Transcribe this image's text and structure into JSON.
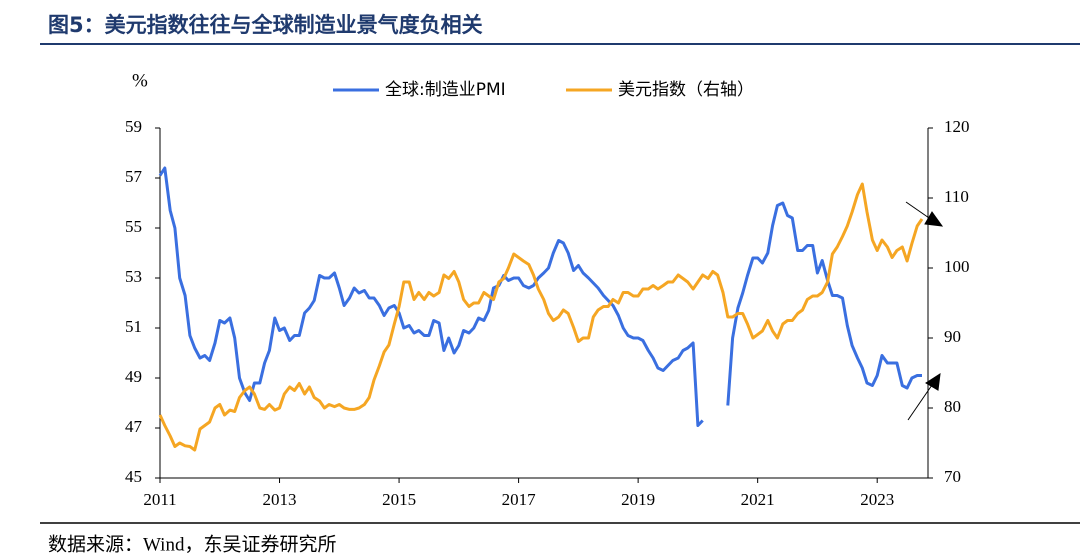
{
  "chart_data": {
    "type": "line",
    "title": "图5：美元指数往往与全球制造业景气度负相关",
    "ylabel": "%",
    "source": "数据来源：Wind，东吴证券研究所",
    "x": [
      2011.0,
      2011.08,
      2011.17,
      2011.25,
      2011.33,
      2011.42,
      2011.5,
      2011.58,
      2011.67,
      2011.75,
      2011.83,
      2011.92,
      2012.0,
      2012.08,
      2012.17,
      2012.25,
      2012.33,
      2012.42,
      2012.5,
      2012.58,
      2012.67,
      2012.75,
      2012.83,
      2012.92,
      2013.0,
      2013.08,
      2013.17,
      2013.25,
      2013.33,
      2013.42,
      2013.5,
      2013.58,
      2013.67,
      2013.75,
      2013.83,
      2013.92,
      2014.0,
      2014.08,
      2014.17,
      2014.25,
      2014.33,
      2014.42,
      2014.5,
      2014.58,
      2014.67,
      2014.75,
      2014.83,
      2014.92,
      2015.0,
      2015.08,
      2015.17,
      2015.25,
      2015.33,
      2015.42,
      2015.5,
      2015.58,
      2015.67,
      2015.75,
      2015.83,
      2015.92,
      2016.0,
      2016.08,
      2016.17,
      2016.25,
      2016.33,
      2016.42,
      2016.5,
      2016.58,
      2016.67,
      2016.75,
      2016.83,
      2016.92,
      2017.0,
      2017.08,
      2017.17,
      2017.25,
      2017.33,
      2017.42,
      2017.5,
      2017.58,
      2017.67,
      2017.75,
      2017.83,
      2017.92,
      2018.0,
      2018.08,
      2018.17,
      2018.25,
      2018.33,
      2018.42,
      2018.5,
      2018.58,
      2018.67,
      2018.75,
      2018.83,
      2018.92,
      2019.0,
      2019.08,
      2019.17,
      2019.25,
      2019.33,
      2019.42,
      2019.5,
      2019.58,
      2019.67,
      2019.75,
      2019.83,
      2019.92,
      2020.0,
      2020.08,
      2020.17,
      2020.25,
      2020.33,
      2020.42,
      2020.5,
      2020.58,
      2020.67,
      2020.75,
      2020.83,
      2020.92,
      2021.0,
      2021.08,
      2021.17,
      2021.25,
      2021.33,
      2021.42,
      2021.5,
      2021.58,
      2021.67,
      2021.75,
      2021.83,
      2021.92,
      2022.0,
      2022.08,
      2022.17,
      2022.25,
      2022.33,
      2022.42,
      2022.5,
      2022.58,
      2022.67,
      2022.75,
      2022.83,
      2022.92,
      2023.0,
      2023.08,
      2023.17,
      2023.25,
      2023.33,
      2023.42,
      2023.5,
      2023.58,
      2023.67,
      2023.75
    ],
    "series": [
      {
        "name": "全球:制造业PMI",
        "color": "#3a6fe0",
        "axis": "y",
        "values": [
          57.1,
          57.4,
          55.7,
          55.0,
          53.0,
          52.3,
          50.7,
          50.2,
          49.8,
          49.9,
          49.7,
          50.4,
          51.3,
          51.2,
          51.4,
          50.6,
          49.0,
          48.4,
          48.1,
          48.8,
          48.8,
          49.6,
          50.1,
          51.4,
          50.9,
          51.0,
          50.5,
          50.7,
          50.7,
          51.6,
          51.8,
          52.1,
          53.1,
          53.0,
          53.0,
          53.2,
          52.6,
          51.9,
          52.2,
          52.6,
          52.4,
          52.5,
          52.2,
          52.2,
          51.9,
          51.5,
          51.8,
          51.9,
          51.6,
          51.0,
          51.1,
          50.8,
          50.9,
          50.7,
          50.7,
          51.3,
          51.2,
          50.1,
          50.6,
          50.0,
          50.3,
          50.9,
          50.8,
          51.0,
          51.4,
          51.3,
          51.7,
          52.6,
          52.7,
          53.1,
          52.9,
          53.0,
          53.0,
          52.7,
          52.6,
          52.7,
          53.0,
          53.2,
          53.4,
          54.0,
          54.5,
          54.4,
          54.0,
          53.3,
          53.5,
          53.2,
          53.0,
          52.8,
          52.6,
          52.3,
          52.1,
          51.9,
          51.5,
          51.0,
          50.7,
          50.6,
          50.6,
          50.5,
          50.1,
          49.8,
          49.4,
          49.3,
          49.5,
          49.7,
          49.8,
          50.1,
          50.2,
          50.4,
          47.1,
          47.3,
          null,
          null,
          null,
          null,
          47.9,
          50.6,
          51.8,
          52.4,
          53.1,
          53.8,
          53.8,
          53.6,
          54.0,
          55.1,
          55.9,
          56.0,
          55.5,
          55.4,
          54.1,
          54.1,
          54.3,
          54.3,
          53.2,
          53.7,
          52.9,
          52.3,
          52.3,
          52.2,
          51.1,
          50.3,
          49.8,
          49.4,
          48.8,
          48.7,
          49.1,
          49.9,
          49.6,
          49.6,
          49.6,
          48.7,
          48.6,
          49.0,
          49.1,
          49.1
        ]
      },
      {
        "name": "美元指数（右轴）",
        "color": "#f5a623",
        "axis": "y2",
        "values": [
          79,
          77.5,
          76,
          74.5,
          75,
          74.6,
          74.5,
          74,
          77,
          77.5,
          78,
          80,
          80.5,
          79,
          79.7,
          79.5,
          81.5,
          82.5,
          83,
          82,
          80,
          79.8,
          80.5,
          79.7,
          80,
          82,
          83,
          82.5,
          83.5,
          82,
          83,
          81.5,
          81,
          80,
          80.5,
          80.2,
          80.5,
          80,
          79.8,
          79.8,
          80,
          80.5,
          81.5,
          84,
          86,
          88,
          89,
          92,
          94.5,
          98,
          98,
          95.5,
          96.5,
          95.5,
          96.5,
          96,
          96.5,
          99,
          98.5,
          99.5,
          98,
          95.5,
          94.5,
          95,
          95,
          96.5,
          96,
          95.5,
          98,
          98.5,
          100,
          102,
          101.5,
          101,
          100.5,
          99,
          97,
          95.5,
          93.5,
          92.5,
          93,
          94,
          93.5,
          91.5,
          89.5,
          90,
          90,
          93,
          94,
          94.5,
          94.5,
          95.5,
          95,
          96.5,
          96.5,
          96,
          96,
          97,
          97,
          97.5,
          97,
          97.5,
          98,
          98,
          99,
          98.5,
          98,
          97,
          98,
          99,
          98.5,
          99.5,
          99,
          96.5,
          93,
          93,
          93.5,
          93.5,
          92,
          90,
          90.5,
          91,
          92.5,
          91,
          90,
          92,
          92.5,
          92.5,
          93.5,
          94,
          95.5,
          96,
          96,
          96.5,
          98,
          102,
          103,
          104.5,
          106,
          108,
          110.5,
          112,
          108,
          104,
          102.5,
          104,
          103,
          101.5,
          102.5,
          103,
          101,
          103.5,
          106,
          107
        ]
      }
    ],
    "xlim": [
      2011,
      2023.85
    ],
    "xticks": [
      2011,
      2013,
      2015,
      2017,
      2019,
      2021,
      2023
    ],
    "ylim": [
      45,
      59
    ],
    "yticks": [
      45,
      47,
      49,
      51,
      53,
      55,
      57,
      59
    ],
    "y2lim": [
      70,
      120
    ],
    "y2ticks": [
      70,
      80,
      90,
      100,
      110,
      120
    ]
  }
}
